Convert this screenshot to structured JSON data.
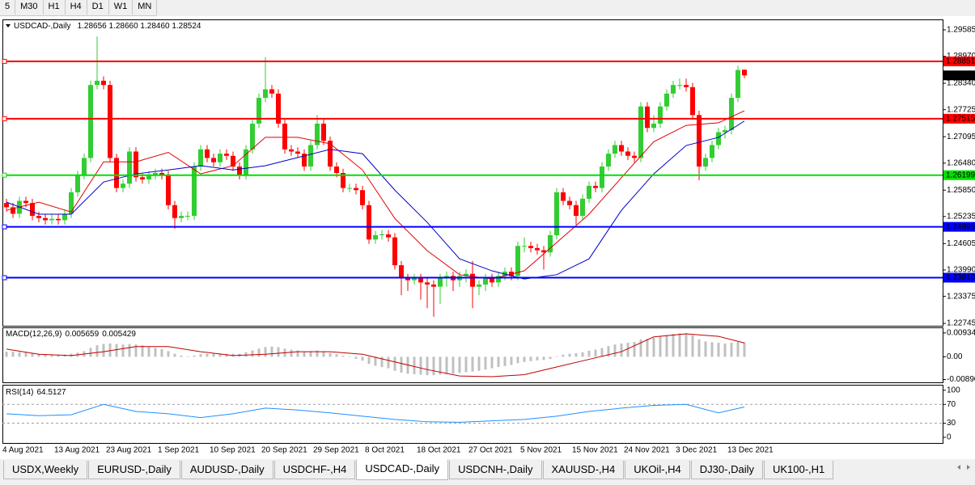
{
  "toolbar": {
    "timeframes": [
      "5",
      "M30",
      "H1",
      "H4",
      "D1",
      "W1",
      "MN"
    ]
  },
  "tabs": [
    "USDX,Weekly",
    "EURUSD-,Daily",
    "AUDUSD-,Daily",
    "USDCHF-,H4",
    "USDCAD-,Daily",
    "USDCNH-,Daily",
    "XAUUSD-,H4",
    "UKOil-,H4",
    "DJ30-,Daily",
    "UK100-,H1"
  ],
  "active_tab": 4,
  "chart_data": [
    {
      "type": "candlestick",
      "title": "USDCAD-,Daily",
      "quote": "1.28656 1.28660 1.28460 1.28524",
      "up_color": "#32cd32",
      "down_color": "#ff0000",
      "categories": [
        "4 Aug 2021",
        null,
        null,
        null,
        null,
        null,
        null,
        null,
        "13 Aug 2021",
        null,
        null,
        null,
        null,
        null,
        null,
        null,
        "23 Aug 2021",
        null,
        null,
        null,
        null,
        null,
        null,
        null,
        "1 Sep 2021",
        null,
        null,
        null,
        null,
        null,
        null,
        null,
        "10 Sep 2021",
        null,
        null,
        null,
        null,
        null,
        null,
        null,
        "20 Sep 2021",
        null,
        null,
        null,
        null,
        null,
        null,
        null,
        "29 Sep 2021",
        null,
        null,
        null,
        null,
        null,
        null,
        null,
        "8 Oct 2021",
        null,
        null,
        null,
        null,
        null,
        null,
        null,
        "18 Oct 2021",
        null,
        null,
        null,
        null,
        null,
        null,
        null,
        "27 Oct 2021",
        null,
        null,
        null,
        null,
        null,
        null,
        null,
        "5 Nov 2021",
        null,
        null,
        null,
        null,
        null,
        null,
        null,
        "15 Nov 2021",
        null,
        null,
        null,
        null,
        null,
        null,
        null,
        "24 Nov 2021",
        null,
        null,
        null,
        null,
        null,
        null,
        null,
        "3 Dec 2021",
        null,
        null,
        null,
        null,
        null,
        null,
        null,
        "13 Dec 2021",
        null,
        null
      ],
      "open": [
        1.2555,
        1.2545,
        1.253,
        1.256,
        1.2555,
        1.2525,
        1.252,
        1.2515,
        1.2518,
        1.2515,
        1.253,
        1.258,
        1.262,
        1.266,
        1.283,
        1.284,
        1.283,
        1.266,
        1.259,
        1.26,
        1.2675,
        1.2615,
        1.261,
        1.262,
        1.2625,
        1.262,
        1.255,
        1.252,
        1.2525,
        1.2525,
        1.264,
        1.268,
        1.266,
        1.265,
        1.267,
        1.2665,
        1.264,
        1.262,
        1.268,
        1.274,
        1.28,
        1.282,
        1.281,
        1.274,
        1.268,
        1.2675,
        1.267,
        1.264,
        1.269,
        1.274,
        1.27,
        1.264,
        1.2625,
        1.259,
        1.259,
        1.2585,
        1.255,
        1.247,
        1.248,
        1.2482,
        1.2475,
        1.241,
        1.238,
        1.2375,
        1.238,
        1.237,
        1.2365,
        1.236,
        1.238,
        1.2385,
        1.2375,
        1.2385,
        1.239,
        1.236,
        1.2365,
        1.238,
        1.237,
        1.2385,
        1.2395,
        1.2385,
        1.2455,
        1.2455,
        1.245,
        1.2445,
        1.244,
        1.248,
        1.258,
        1.256,
        1.255,
        1.2525,
        1.2565,
        1.2595,
        1.259,
        1.264,
        1.267,
        1.269,
        1.2675,
        1.2665,
        1.266,
        1.278,
        1.273,
        1.274,
        1.278,
        1.281,
        1.283,
        1.283,
        1.2825,
        1.276,
        1.264,
        1.266,
        1.269,
        1.272,
        1.2725,
        1.28,
        1.28656
      ],
      "high": [
        1.2565,
        1.2555,
        1.257,
        1.257,
        1.2565,
        1.2535,
        1.253,
        1.2528,
        1.2528,
        1.254,
        1.259,
        1.263,
        1.267,
        1.284,
        1.2943,
        1.285,
        1.284,
        1.267,
        1.261,
        1.2685,
        1.2685,
        1.2625,
        1.263,
        1.2635,
        1.2635,
        1.263,
        1.256,
        1.2535,
        1.2535,
        1.265,
        1.269,
        1.269,
        1.267,
        1.268,
        1.268,
        1.2675,
        1.265,
        1.269,
        1.275,
        1.281,
        1.2895,
        1.283,
        1.282,
        1.275,
        1.269,
        1.2685,
        1.268,
        1.27,
        1.276,
        1.275,
        1.271,
        1.265,
        1.2635,
        1.26,
        1.26,
        1.2595,
        1.256,
        1.249,
        1.2492,
        1.2492,
        1.2485,
        1.242,
        1.239,
        1.239,
        1.239,
        1.238,
        1.2375,
        1.239,
        1.2395,
        1.2395,
        1.2395,
        1.24,
        1.242,
        1.2375,
        1.239,
        1.239,
        1.2395,
        1.2405,
        1.2405,
        1.2465,
        1.2475,
        1.2465,
        1.246,
        1.2455,
        1.249,
        1.259,
        1.259,
        1.257,
        1.256,
        1.2575,
        1.2605,
        1.2605,
        1.265,
        1.268,
        1.27,
        1.27,
        1.2685,
        1.2675,
        1.279,
        1.279,
        1.276,
        1.279,
        1.282,
        1.284,
        1.2845,
        1.2845,
        1.2835,
        1.277,
        1.267,
        1.27,
        1.273,
        1.2735,
        1.281,
        1.2875,
        1.2866
      ],
      "low": [
        1.2535,
        1.252,
        1.252,
        1.2545,
        1.2515,
        1.251,
        1.2505,
        1.2505,
        1.2505,
        1.2505,
        1.252,
        1.257,
        1.261,
        1.265,
        1.282,
        1.282,
        1.265,
        1.258,
        1.258,
        1.259,
        1.2605,
        1.26,
        1.26,
        1.261,
        1.261,
        1.254,
        1.2495,
        1.251,
        1.2515,
        1.2515,
        1.263,
        1.265,
        1.264,
        1.264,
        1.2655,
        1.263,
        1.261,
        1.261,
        1.267,
        1.273,
        1.279,
        1.28,
        1.273,
        1.267,
        1.2665,
        1.266,
        1.263,
        1.263,
        1.268,
        1.269,
        1.263,
        1.2615,
        1.258,
        1.258,
        1.2575,
        1.254,
        1.246,
        1.246,
        1.247,
        1.2465,
        1.24,
        1.234,
        1.235,
        1.2365,
        1.233,
        1.231,
        1.229,
        1.232,
        1.236,
        1.235,
        1.236,
        1.237,
        1.231,
        1.234,
        1.235,
        1.236,
        1.236,
        1.2375,
        1.2375,
        1.2375,
        1.244,
        1.244,
        1.2435,
        1.24,
        1.243,
        1.247,
        1.255,
        1.254,
        1.2505,
        1.2515,
        1.2555,
        1.258,
        1.258,
        1.263,
        1.266,
        1.2665,
        1.2655,
        1.265,
        1.265,
        1.272,
        1.272,
        1.273,
        1.277,
        1.28,
        1.282,
        1.2815,
        1.275,
        1.2608,
        1.263,
        1.265,
        1.268,
        1.2705,
        1.2715,
        1.279,
        1.2846
      ],
      "close": [
        1.2545,
        1.253,
        1.256,
        1.2555,
        1.2525,
        1.252,
        1.2515,
        1.2518,
        1.2515,
        1.253,
        1.258,
        1.262,
        1.266,
        1.283,
        1.284,
        1.283,
        1.266,
        1.259,
        1.26,
        1.2675,
        1.2615,
        1.261,
        1.262,
        1.2625,
        1.262,
        1.255,
        1.252,
        1.2525,
        1.2525,
        1.264,
        1.268,
        1.266,
        1.265,
        1.267,
        1.2665,
        1.264,
        1.262,
        1.268,
        1.274,
        1.28,
        1.282,
        1.281,
        1.274,
        1.268,
        1.2675,
        1.267,
        1.264,
        1.269,
        1.274,
        1.27,
        1.264,
        1.2625,
        1.259,
        1.259,
        1.2585,
        1.255,
        1.247,
        1.248,
        1.2482,
        1.2475,
        1.241,
        1.238,
        1.2375,
        1.238,
        1.237,
        1.2365,
        1.236,
        1.238,
        1.2385,
        1.2375,
        1.2385,
        1.239,
        1.236,
        1.2365,
        1.238,
        1.237,
        1.2385,
        1.2395,
        1.2385,
        1.2455,
        1.2455,
        1.245,
        1.2445,
        1.244,
        1.248,
        1.258,
        1.256,
        1.255,
        1.2525,
        1.2565,
        1.2595,
        1.259,
        1.264,
        1.267,
        1.269,
        1.2675,
        1.2665,
        1.266,
        1.278,
        1.273,
        1.274,
        1.278,
        1.281,
        1.283,
        1.283,
        1.2825,
        1.276,
        1.264,
        1.266,
        1.269,
        1.272,
        1.2725,
        1.28,
        1.2865,
        1.28524
      ],
      "overlays": [
        {
          "color": "#e00000",
          "x": [
            0,
            5,
            10,
            15,
            20,
            25,
            30,
            35,
            40,
            45,
            50,
            55,
            60,
            65,
            70,
            75,
            80,
            85,
            90,
            95,
            100,
            105,
            110,
            114
          ],
          "values": [
            1.2538,
            1.2557,
            1.2534,
            1.2651,
            1.2651,
            1.2673,
            1.2623,
            1.2642,
            1.2708,
            1.2708,
            1.2693,
            1.2632,
            1.2519,
            1.2444,
            1.2388,
            1.2378,
            1.2397,
            1.2463,
            1.2529,
            1.2614,
            1.2698,
            1.2736,
            1.2742,
            1.277
          ]
        },
        {
          "color": "#0000c8",
          "x": [
            0,
            5,
            10,
            15,
            20,
            25,
            30,
            35,
            40,
            45,
            50,
            55,
            60,
            65,
            70,
            75,
            80,
            85,
            90,
            95,
            100,
            105,
            110,
            114
          ],
          "values": [
            1.2557,
            1.2529,
            1.2529,
            1.2604,
            1.2623,
            1.2632,
            1.2642,
            1.2632,
            1.2642,
            1.2661,
            1.268,
            1.267,
            1.2585,
            1.251,
            1.2425,
            1.2397,
            1.2378,
            1.2388,
            1.2425,
            1.2538,
            1.2623,
            1.2689,
            1.2708,
            1.2746
          ]
        }
      ],
      "levels": [
        {
          "value": 1.28851,
          "color": "#ff0000"
        },
        {
          "value": 1.27515,
          "color": "#ff0000"
        },
        {
          "value": 1.26199,
          "color": "#00e000"
        },
        {
          "value": 1.24995,
          "color": "#0000ff"
        },
        {
          "value": 1.2381,
          "label": "1.23810",
          "color": "#0000ff"
        }
      ],
      "last_price": 1.28524,
      "ylim": [
        1.2269,
        1.2981
      ],
      "yticks": [
        1.29585,
        {
          "value": 1.2897,
          "label": "1.28970"
        },
        {
          "value": 1.2834,
          "label": "1.28340"
        },
        1.27725,
        1.27095,
        {
          "value": 1.2648,
          "label": "1.26480"
        },
        {
          "value": 1.2585,
          "label": "1.25850"
        },
        1.25235,
        1.24605,
        {
          "value": 1.2399,
          "label": "1.23990"
        },
        1.23375,
        1.22745
      ]
    },
    {
      "type": "bar",
      "title": "MACD(12,26,9)",
      "color": "#c0c0c0",
      "values": [
        0.002,
        0.002,
        0.0018,
        0.0018,
        0.0015,
        0.0012,
        0.001,
        0.0008,
        0.0008,
        0.0009,
        0.0012,
        0.0016,
        0.0022,
        0.0035,
        0.0045,
        0.005,
        0.0052,
        0.005,
        0.0048,
        0.005,
        0.0048,
        0.0045,
        0.004,
        0.0035,
        0.003,
        0.0022,
        0.0012,
        0.0005,
        0.0002,
        0.0005,
        0.001,
        0.0012,
        0.0012,
        0.0013,
        0.0012,
        0.0012,
        0.0012,
        0.0018,
        0.0025,
        0.0032,
        0.0038,
        0.004,
        0.0038,
        0.0032,
        0.0028,
        0.0025,
        0.002,
        0.0022,
        0.0025,
        0.0022,
        0.0015,
        0.001,
        0.0004,
        -0.0002,
        -0.0008,
        -0.0015,
        -0.0028,
        -0.0035,
        -0.004,
        -0.0045,
        -0.0055,
        -0.0062,
        -0.0066,
        -0.0068,
        -0.007,
        -0.0072,
        -0.0072,
        -0.007,
        -0.0068,
        -0.0066,
        -0.0063,
        -0.006,
        -0.0058,
        -0.0055,
        -0.005,
        -0.0045,
        -0.004,
        -0.0036,
        -0.0032,
        -0.0025,
        -0.002,
        -0.0017,
        -0.0014,
        -0.0012,
        -0.0008,
        0.0002,
        0.0008,
        0.0012,
        0.0014,
        0.0018,
        0.0024,
        0.0028,
        0.0034,
        0.0042,
        0.0048,
        0.0052,
        0.0055,
        0.0058,
        0.0068,
        0.007,
        0.0074,
        0.008,
        0.0085,
        0.009,
        0.0092,
        0.0092,
        0.0085,
        0.0068,
        0.006,
        0.0057,
        0.0055,
        0.0052,
        0.0055,
        0.0058,
        0.005659
      ],
      "overlays": [
        {
          "color": "#c00000",
          "x": [
            0,
            5,
            10,
            15,
            20,
            25,
            30,
            35,
            40,
            45,
            50,
            55,
            60,
            65,
            70,
            75,
            80,
            85,
            90,
            95,
            100,
            105,
            110,
            114
          ],
          "values": [
            0.003,
            0.001,
            0.0005,
            0.002,
            0.004,
            0.004,
            0.002,
            0.0005,
            0.001,
            0.002,
            0.002,
            0.001,
            -0.002,
            -0.005,
            -0.0075,
            -0.0078,
            -0.007,
            -0.004,
            -0.001,
            0.002,
            0.0078,
            0.009,
            0.008,
            0.005429
          ]
        }
      ],
      "ylim": [
        -0.01,
        0.0112
      ],
      "yticks": [
        0.009345,
        {
          "value": 0,
          "label": "0.00"
        },
        {
          "value": -0.0089,
          "label": "-0.00890"
        }
      ]
    },
    {
      "type": "line",
      "title": "RSI(14)",
      "color": "#1e90ff",
      "x": [
        0,
        5,
        10,
        15,
        20,
        25,
        30,
        35,
        40,
        45,
        50,
        55,
        60,
        65,
        70,
        75,
        80,
        85,
        90,
        95,
        100,
        105,
        110,
        114
      ],
      "values": [
        50,
        46,
        48,
        70,
        55,
        50,
        42,
        50,
        62,
        58,
        52,
        45,
        38,
        33,
        32,
        35,
        38,
        45,
        55,
        62,
        68,
        70,
        52,
        64.5127
      ],
      "levels": [
        {
          "value": 70,
          "color": "#a0a0a0"
        },
        {
          "value": 30,
          "color": "#a0a0a0"
        }
      ],
      "ylim": [
        -12,
        110
      ],
      "yticks": [
        100,
        70,
        30,
        0
      ]
    }
  ]
}
